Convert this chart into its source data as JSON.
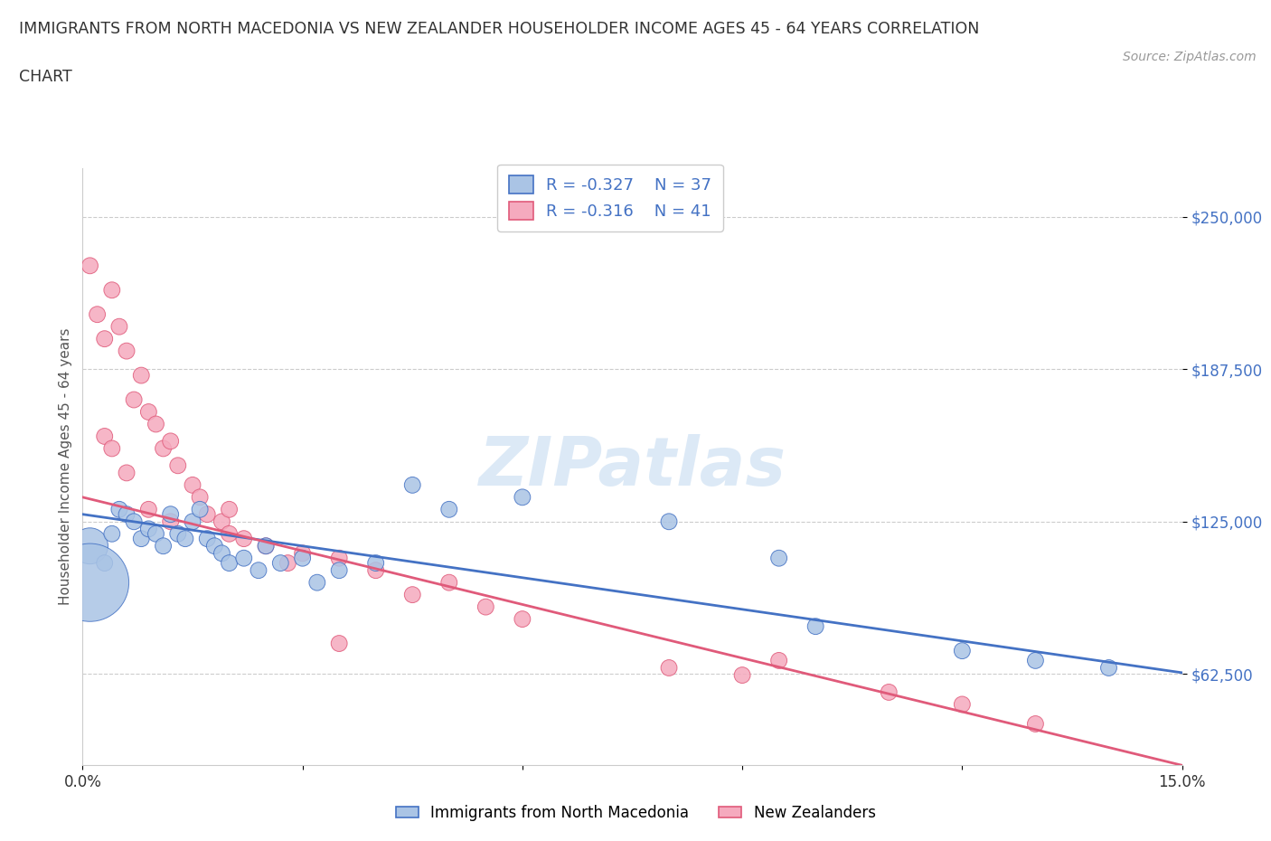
{
  "title_line1": "IMMIGRANTS FROM NORTH MACEDONIA VS NEW ZEALANDER HOUSEHOLDER INCOME AGES 45 - 64 YEARS CORRELATION",
  "title_line2": "CHART",
  "source": "Source: ZipAtlas.com",
  "ylabel": "Householder Income Ages 45 - 64 years",
  "xlim": [
    0.0,
    0.15
  ],
  "ylim": [
    25000,
    270000
  ],
  "yticks": [
    62500,
    125000,
    187500,
    250000
  ],
  "ytick_labels": [
    "$62,500",
    "$125,000",
    "$187,500",
    "$250,000"
  ],
  "xticks": [
    0.0,
    0.03,
    0.06,
    0.09,
    0.12,
    0.15
  ],
  "xtick_labels": [
    "0.0%",
    "",
    "",
    "",
    "",
    "15.0%"
  ],
  "blue_R": "-0.327",
  "blue_N": "37",
  "pink_R": "-0.316",
  "pink_N": "41",
  "blue_face_color": "#aac4e5",
  "pink_face_color": "#f5aabe",
  "blue_edge_color": "#4472c4",
  "pink_edge_color": "#e05a7a",
  "blue_line_color": "#4472c4",
  "pink_line_color": "#e05a7a",
  "blue_x": [
    0.001,
    0.003,
    0.004,
    0.005,
    0.006,
    0.007,
    0.008,
    0.009,
    0.01,
    0.011,
    0.012,
    0.013,
    0.014,
    0.015,
    0.016,
    0.017,
    0.018,
    0.019,
    0.02,
    0.022,
    0.024,
    0.025,
    0.027,
    0.03,
    0.032,
    0.035,
    0.04,
    0.045,
    0.05,
    0.06,
    0.08,
    0.095,
    0.1,
    0.12,
    0.13,
    0.14,
    0.001
  ],
  "blue_y": [
    115000,
    108000,
    120000,
    130000,
    128000,
    125000,
    118000,
    122000,
    120000,
    115000,
    128000,
    120000,
    118000,
    125000,
    130000,
    118000,
    115000,
    112000,
    108000,
    110000,
    105000,
    115000,
    108000,
    110000,
    100000,
    105000,
    108000,
    140000,
    130000,
    135000,
    125000,
    110000,
    82000,
    72000,
    68000,
    65000,
    100000
  ],
  "blue_sizes": [
    150,
    30,
    30,
    30,
    30,
    30,
    30,
    30,
    30,
    30,
    30,
    30,
    30,
    30,
    30,
    30,
    30,
    30,
    30,
    30,
    30,
    30,
    30,
    30,
    30,
    30,
    30,
    30,
    30,
    30,
    30,
    30,
    30,
    30,
    30,
    30,
    700
  ],
  "pink_x": [
    0.001,
    0.002,
    0.003,
    0.004,
    0.005,
    0.006,
    0.007,
    0.008,
    0.009,
    0.01,
    0.011,
    0.012,
    0.013,
    0.015,
    0.016,
    0.017,
    0.019,
    0.02,
    0.022,
    0.025,
    0.028,
    0.03,
    0.035,
    0.04,
    0.045,
    0.05,
    0.055,
    0.06,
    0.08,
    0.09,
    0.095,
    0.11,
    0.12,
    0.13,
    0.003,
    0.004,
    0.006,
    0.009,
    0.012,
    0.02,
    0.035
  ],
  "pink_y": [
    230000,
    210000,
    200000,
    220000,
    205000,
    195000,
    175000,
    185000,
    170000,
    165000,
    155000,
    158000,
    148000,
    140000,
    135000,
    128000,
    125000,
    130000,
    118000,
    115000,
    108000,
    112000,
    110000,
    105000,
    95000,
    100000,
    90000,
    85000,
    65000,
    62000,
    68000,
    55000,
    50000,
    42000,
    160000,
    155000,
    145000,
    130000,
    125000,
    120000,
    75000
  ],
  "pink_sizes": [
    30,
    30,
    30,
    30,
    30,
    30,
    30,
    30,
    30,
    30,
    30,
    30,
    30,
    30,
    30,
    30,
    30,
    30,
    30,
    30,
    30,
    30,
    30,
    30,
    30,
    30,
    30,
    30,
    30,
    30,
    30,
    30,
    30,
    30,
    30,
    30,
    30,
    30,
    30,
    30,
    30
  ],
  "blue_line_x0": 0.0,
  "blue_line_y0": 128000,
  "blue_line_x1": 0.15,
  "blue_line_y1": 63000,
  "pink_line_x0": 0.0,
  "pink_line_y0": 135000,
  "pink_line_x1": 0.15,
  "pink_line_y1": 25000
}
